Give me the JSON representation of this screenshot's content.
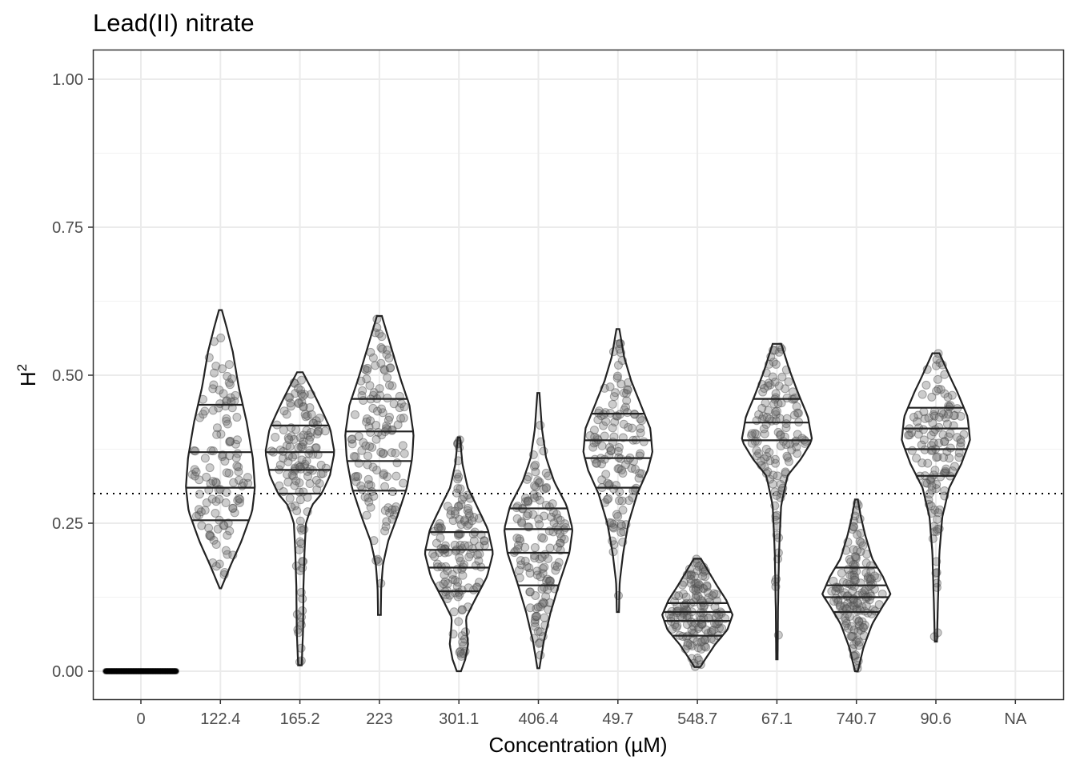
{
  "chart_data": {
    "type": "violin",
    "title": "Lead(II) nitrate",
    "xlabel": "Concentration (µM)",
    "ylabel": "H",
    "ylabel_superscript": "2",
    "ylim": [
      -0.05,
      1.05
    ],
    "yticks": [
      0.0,
      0.25,
      0.5,
      0.75,
      1.0
    ],
    "ytick_labels": [
      "0.00",
      "0.25",
      "0.50",
      "0.75",
      "1.00"
    ],
    "reference_line": {
      "y": 0.3,
      "style": "dotted"
    },
    "grid": true,
    "categories": [
      "0",
      "122.4",
      "165.2",
      "223",
      "301.1",
      "406.4",
      "49.7",
      "548.7",
      "67.1",
      "740.7",
      "90.6",
      "NA"
    ],
    "series": [
      {
        "category": "0",
        "min": 0.0,
        "max": 0.0,
        "quantiles": [],
        "flat": true,
        "n": 60
      },
      {
        "category": "122.4",
        "min": 0.14,
        "max": 0.61,
        "quantiles": [
          0.255,
          0.31,
          0.37,
          0.45
        ],
        "shape": [
          [
            0.14,
            0.02
          ],
          [
            0.18,
            0.3
          ],
          [
            0.22,
            0.6
          ],
          [
            0.27,
            0.9
          ],
          [
            0.31,
            0.98
          ],
          [
            0.36,
            0.92
          ],
          [
            0.42,
            0.75
          ],
          [
            0.48,
            0.52
          ],
          [
            0.54,
            0.35
          ],
          [
            0.58,
            0.18
          ],
          [
            0.61,
            0.04
          ]
        ],
        "n": 120
      },
      {
        "category": "165.2",
        "min": 0.01,
        "max": 0.505,
        "quantiles": [
          0.3,
          0.34,
          0.37,
          0.415
        ],
        "shape": [
          [
            0.01,
            0.05
          ],
          [
            0.07,
            0.09
          ],
          [
            0.14,
            0.1
          ],
          [
            0.2,
            0.13
          ],
          [
            0.25,
            0.17
          ],
          [
            0.28,
            0.34
          ],
          [
            0.3,
            0.62
          ],
          [
            0.33,
            0.85
          ],
          [
            0.37,
            0.98
          ],
          [
            0.41,
            0.86
          ],
          [
            0.45,
            0.55
          ],
          [
            0.48,
            0.3
          ],
          [
            0.505,
            0.08
          ]
        ],
        "n": 140
      },
      {
        "category": "223",
        "min": 0.095,
        "max": 0.6,
        "quantiles": [
          0.305,
          0.355,
          0.405,
          0.46
        ],
        "shape": [
          [
            0.095,
            0.04
          ],
          [
            0.14,
            0.05
          ],
          [
            0.18,
            0.1
          ],
          [
            0.22,
            0.25
          ],
          [
            0.26,
            0.5
          ],
          [
            0.31,
            0.78
          ],
          [
            0.36,
            0.93
          ],
          [
            0.4,
            0.97
          ],
          [
            0.45,
            0.85
          ],
          [
            0.49,
            0.62
          ],
          [
            0.53,
            0.42
          ],
          [
            0.57,
            0.22
          ],
          [
            0.6,
            0.07
          ]
        ],
        "n": 130
      },
      {
        "category": "301.1",
        "min": 0.0,
        "max": 0.395,
        "quantiles": [
          0.135,
          0.175,
          0.205,
          0.235
        ],
        "shape": [
          [
            0.0,
            0.06
          ],
          [
            0.02,
            0.18
          ],
          [
            0.045,
            0.26
          ],
          [
            0.07,
            0.22
          ],
          [
            0.09,
            0.2
          ],
          [
            0.12,
            0.45
          ],
          [
            0.16,
            0.8
          ],
          [
            0.2,
            0.97
          ],
          [
            0.24,
            0.82
          ],
          [
            0.28,
            0.5
          ],
          [
            0.31,
            0.25
          ],
          [
            0.35,
            0.1
          ],
          [
            0.395,
            0.03
          ]
        ],
        "n": 140
      },
      {
        "category": "406.4",
        "min": 0.005,
        "max": 0.47,
        "quantiles": [
          0.145,
          0.2,
          0.24,
          0.275
        ],
        "shape": [
          [
            0.005,
            0.03
          ],
          [
            0.05,
            0.15
          ],
          [
            0.1,
            0.35
          ],
          [
            0.15,
            0.6
          ],
          [
            0.2,
            0.88
          ],
          [
            0.24,
            0.97
          ],
          [
            0.28,
            0.8
          ],
          [
            0.32,
            0.45
          ],
          [
            0.36,
            0.22
          ],
          [
            0.41,
            0.1
          ],
          [
            0.47,
            0.03
          ]
        ],
        "n": 140
      },
      {
        "category": "49.7",
        "min": 0.1,
        "max": 0.578,
        "quantiles": [
          0.31,
          0.36,
          0.39,
          0.435
        ],
        "shape": [
          [
            0.1,
            0.03
          ],
          [
            0.15,
            0.05
          ],
          [
            0.2,
            0.15
          ],
          [
            0.25,
            0.3
          ],
          [
            0.3,
            0.55
          ],
          [
            0.34,
            0.85
          ],
          [
            0.37,
            0.98
          ],
          [
            0.41,
            0.92
          ],
          [
            0.45,
            0.65
          ],
          [
            0.49,
            0.38
          ],
          [
            0.53,
            0.18
          ],
          [
            0.578,
            0.04
          ]
        ],
        "n": 130
      },
      {
        "category": "548.7",
        "min": 0.007,
        "max": 0.19,
        "quantiles": [
          0.06,
          0.085,
          0.1,
          0.115
        ],
        "shape": [
          [
            0.007,
            0.08
          ],
          [
            0.02,
            0.22
          ],
          [
            0.045,
            0.5
          ],
          [
            0.07,
            0.85
          ],
          [
            0.095,
            1.0
          ],
          [
            0.12,
            0.82
          ],
          [
            0.145,
            0.55
          ],
          [
            0.17,
            0.3
          ],
          [
            0.19,
            0.1
          ]
        ],
        "n": 150
      },
      {
        "category": "67.1",
        "min": 0.02,
        "max": 0.553,
        "quantiles": [
          0.39,
          0.42,
          0.46
        ],
        "shape": [
          [
            0.02,
            0.02
          ],
          [
            0.1,
            0.03
          ],
          [
            0.2,
            0.06
          ],
          [
            0.28,
            0.12
          ],
          [
            0.33,
            0.3
          ],
          [
            0.36,
            0.7
          ],
          [
            0.39,
            1.0
          ],
          [
            0.43,
            0.88
          ],
          [
            0.47,
            0.6
          ],
          [
            0.51,
            0.35
          ],
          [
            0.553,
            0.12
          ]
        ],
        "n": 130
      },
      {
        "category": "740.7",
        "min": 0.0,
        "max": 0.29,
        "quantiles": [
          0.1,
          0.125,
          0.145,
          0.175
        ],
        "shape": [
          [
            0.0,
            0.04
          ],
          [
            0.04,
            0.2
          ],
          [
            0.08,
            0.45
          ],
          [
            0.11,
            0.75
          ],
          [
            0.13,
            0.97
          ],
          [
            0.16,
            0.75
          ],
          [
            0.19,
            0.45
          ],
          [
            0.23,
            0.25
          ],
          [
            0.26,
            0.13
          ],
          [
            0.29,
            0.04
          ]
        ],
        "n": 150
      },
      {
        "category": "90.6",
        "min": 0.05,
        "max": 0.537,
        "quantiles": [
          0.33,
          0.375,
          0.41,
          0.445
        ],
        "shape": [
          [
            0.05,
            0.03
          ],
          [
            0.12,
            0.06
          ],
          [
            0.2,
            0.1
          ],
          [
            0.26,
            0.18
          ],
          [
            0.31,
            0.38
          ],
          [
            0.35,
            0.72
          ],
          [
            0.39,
            0.97
          ],
          [
            0.43,
            0.9
          ],
          [
            0.47,
            0.62
          ],
          [
            0.5,
            0.38
          ],
          [
            0.537,
            0.1
          ]
        ],
        "n": 130
      },
      {
        "category": "NA",
        "min": null,
        "max": null,
        "quantiles": [],
        "n": 0
      }
    ]
  }
}
